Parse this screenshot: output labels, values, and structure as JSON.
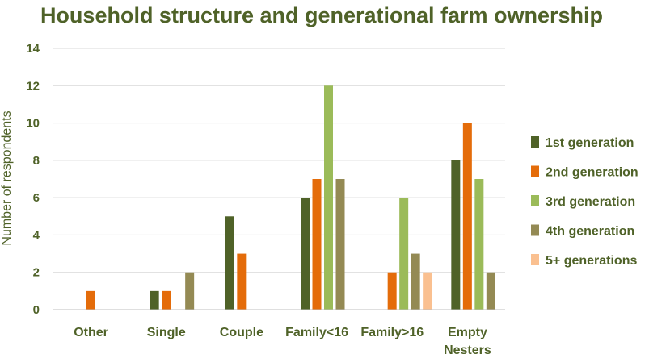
{
  "chart_data": {
    "type": "bar",
    "title": "Household structure and generational farm ownership",
    "xlabel": "",
    "ylabel": "Number of respondents",
    "ylim": [
      0,
      14
    ],
    "yticks": [
      0,
      2,
      4,
      6,
      8,
      10,
      12,
      14
    ],
    "grid": true,
    "legend_position": "right",
    "categories": [
      [
        "Other"
      ],
      [
        "Single"
      ],
      [
        "Couple"
      ],
      [
        "Family<16"
      ],
      [
        "Family>16"
      ],
      [
        "Empty",
        "Nesters"
      ]
    ],
    "series": [
      {
        "name": "1st generation",
        "color": "#4f6228",
        "values": [
          0,
          1,
          5,
          6,
          0,
          8
        ]
      },
      {
        "name": "2nd generation",
        "color": "#e46c0a",
        "values": [
          1,
          1,
          3,
          7,
          2,
          10
        ]
      },
      {
        "name": "3rd generation",
        "color": "#9bbb59",
        "values": [
          0,
          0,
          0,
          12,
          6,
          7
        ]
      },
      {
        "name": "4th generation",
        "color": "#948a54",
        "values": [
          0,
          2,
          0,
          7,
          3,
          2
        ]
      },
      {
        "name": "5+ generations",
        "color": "#fac090",
        "values": [
          0,
          0,
          0,
          0,
          2,
          0
        ]
      }
    ],
    "colors": {
      "text": "#4f6228",
      "gridline": "#d9d9d9",
      "axis": "#bfbfbf"
    }
  }
}
